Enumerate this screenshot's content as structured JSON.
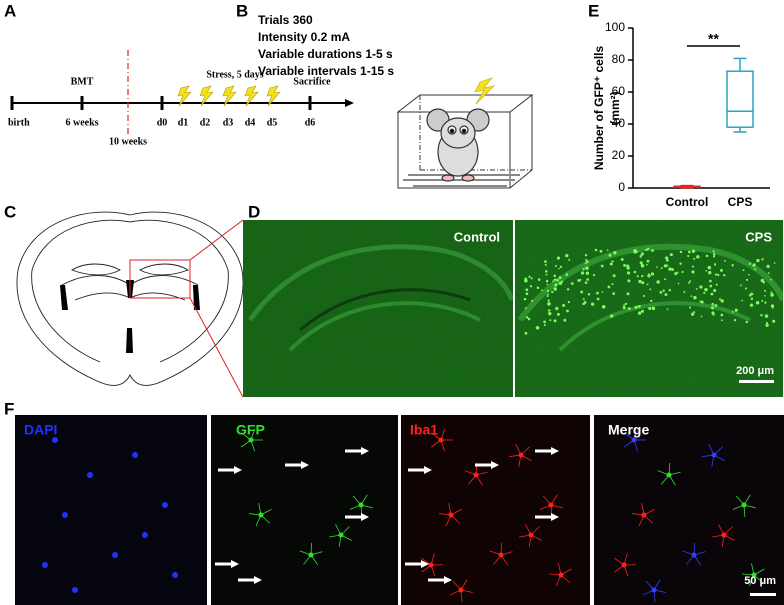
{
  "panel_labels": [
    "A",
    "B",
    "C",
    "D",
    "E",
    "F"
  ],
  "timeline": {
    "below": [
      "birth",
      "6 weeks",
      "d0",
      "d1",
      "d2",
      "d3",
      "d4",
      "d5",
      "d6"
    ],
    "midline": "10 weeks",
    "above": [
      "BMT",
      "Stress, 5 days",
      "Sacrifice"
    ]
  },
  "protocol": [
    "Trials 360",
    "Intensity 0.2 mA",
    "Variable durations 1-5 s",
    "Variable intervals 1-15 s"
  ],
  "chart_data": {
    "type": "box",
    "ylabel": [
      "Number of GFP⁺ cells",
      "(mm²)"
    ],
    "ylim": [
      0,
      100
    ],
    "yticks": [
      0,
      20,
      40,
      60,
      80,
      100
    ],
    "series": [
      {
        "name": "Control",
        "color": "#e8202a",
        "stats": {
          "min": 0,
          "q1": 0.5,
          "median": 1,
          "q3": 1,
          "max": 1.5
        }
      },
      {
        "name": "CPS",
        "color": "#2aa3c4",
        "stats": {
          "min": 35,
          "q1": 38,
          "median": 48,
          "q3": 73,
          "max": 81
        }
      }
    ],
    "annotation": "**"
  },
  "hippocampus": {
    "labels": [
      "Control",
      "CPS"
    ],
    "scale_bar": "200 μm"
  },
  "staining": {
    "labels": [
      "DAPI",
      "GFP",
      "Iba1",
      "Merge"
    ],
    "scale_bar": "50 μm"
  }
}
